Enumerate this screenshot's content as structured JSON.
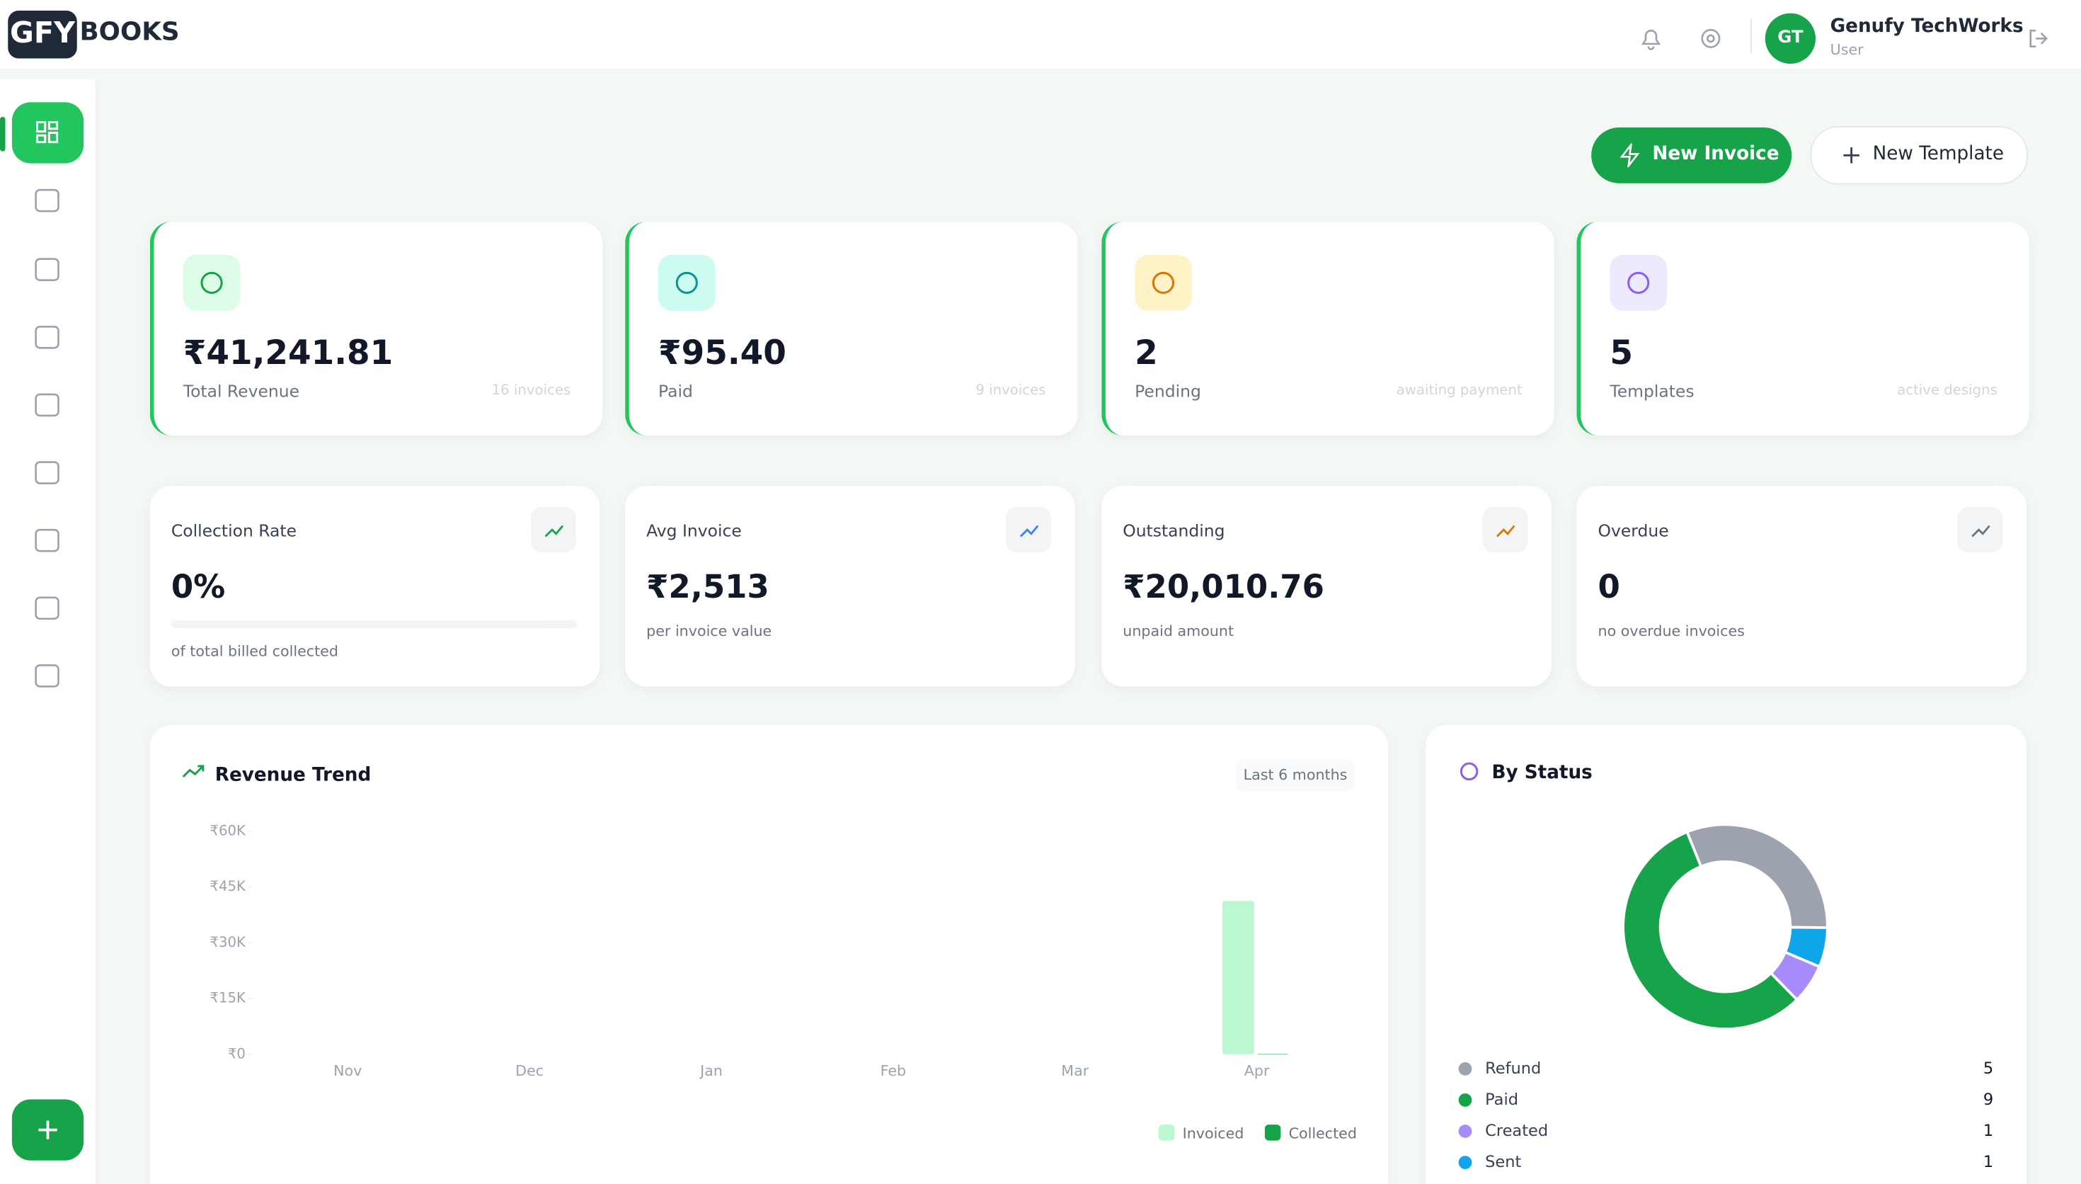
{
  "header": {
    "logo_mark": "GFY",
    "logo_text": "BOOKS",
    "user_initials": "GT",
    "user_name": "Genufy TechWorks",
    "user_role": "User"
  },
  "actions": {
    "new_invoice": "New Invoice",
    "new_template": "New Template"
  },
  "stat_cards": [
    {
      "value": "₹41,241.81",
      "label": "Total Revenue",
      "note": "16 invoices"
    },
    {
      "value": "₹95.40",
      "label": "Paid",
      "note": "9 invoices"
    },
    {
      "value": "2",
      "label": "Pending",
      "note": "awaiting payment"
    },
    {
      "value": "5",
      "label": "Templates",
      "note": "active designs"
    }
  ],
  "metric_cards": [
    {
      "title": "Collection Rate",
      "value": "0%",
      "subtitle": "of total billed collected"
    },
    {
      "title": "Avg Invoice",
      "value": "₹2,513",
      "subtitle": "per invoice value"
    },
    {
      "title": "Outstanding",
      "value": "₹20,010.76",
      "subtitle": "unpaid amount"
    },
    {
      "title": "Overdue",
      "value": "0",
      "subtitle": "no overdue invoices"
    }
  ],
  "revenue_trend": {
    "type": "bar",
    "title": "Revenue Trend",
    "badge": "Last 6 months",
    "categories": [
      "Nov",
      "Dec",
      "Jan",
      "Feb",
      "Mar",
      "Apr"
    ],
    "series": [
      {
        "name": "Invoiced",
        "color": "#bbf7d0",
        "values": [
          0,
          0,
          0,
          0,
          0,
          41241.81
        ]
      },
      {
        "name": "Collected",
        "color": "#16a34a",
        "values": [
          0,
          0,
          0,
          0,
          0,
          95.4
        ]
      }
    ],
    "ylim": [
      0,
      60000
    ],
    "yticks": [
      {
        "value": 0,
        "label": "₹0"
      },
      {
        "value": 15000,
        "label": "₹15K"
      },
      {
        "value": 30000,
        "label": "₹30K"
      },
      {
        "value": 45000,
        "label": "₹45K"
      },
      {
        "value": 60000,
        "label": "₹60K"
      }
    ]
  },
  "by_status": {
    "type": "pie",
    "title": "By Status",
    "categories": [
      "Refund",
      "Paid",
      "Created",
      "Sent"
    ],
    "values": [
      5,
      9,
      1,
      1
    ],
    "colors": [
      "#9ca3af",
      "#16a34a",
      "#a78bfa",
      "#0ea5e9"
    ]
  }
}
